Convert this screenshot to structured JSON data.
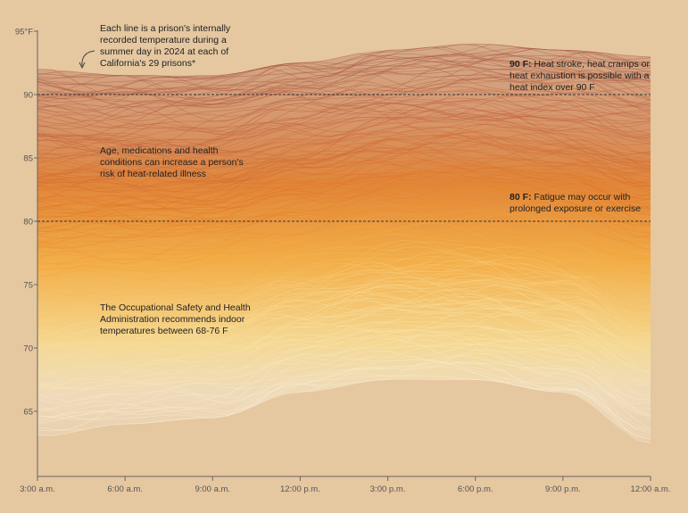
{
  "chart_data": {
    "type": "line",
    "title": "",
    "xlabel": "",
    "ylabel": "",
    "y_unit": "°F",
    "x_ticks": [
      "3:00 a.m.",
      "6:00 a.m.",
      "9:00 a.m.",
      "12:00 p.m.",
      "3:00 p.m.",
      "6:00 p.m.",
      "9:00 p.m.",
      "12:00 a.m."
    ],
    "y_ticks": [
      {
        "value": 95,
        "label": "95°F"
      },
      {
        "value": 90,
        "label": "90"
      },
      {
        "value": 85,
        "label": "85"
      },
      {
        "value": 80,
        "label": "80"
      },
      {
        "value": 75,
        "label": "75"
      },
      {
        "value": 70,
        "label": "70"
      },
      {
        "value": 65,
        "label": "65"
      }
    ],
    "ylim": [
      60,
      95.3
    ],
    "grid": false,
    "reference_lines": [
      {
        "y": 90,
        "style": "dashed"
      },
      {
        "y": 80,
        "style": "dashed"
      }
    ],
    "series_description": "Each line is a prison's internally recorded temperature over a day; hundreds of lines",
    "series_envelope": {
      "x_hours": [
        0,
        3,
        6,
        9,
        12,
        15,
        18,
        21
      ],
      "y_min": [
        63.0,
        64.0,
        64.5,
        66.5,
        67.5,
        67.5,
        66.5,
        62.5
      ],
      "y_max": [
        92.0,
        91.5,
        91.5,
        92.5,
        93.5,
        94.0,
        93.5,
        93.0
      ]
    },
    "colors": {
      "hot": "#a85a48",
      "warm": "#e07b28",
      "mid": "#f5aa3a",
      "cool": "#f8e8b8",
      "background": "#e5c7a0",
      "reference_line": "#333333"
    }
  },
  "annotations": {
    "each_line": [
      "Each line is a prison's internally",
      "recorded temperature during a",
      "summer day in 2024 at each of",
      "California's 29 prisons*"
    ],
    "age": [
      "Age, medications and health",
      "conditions can increase a person's",
      "risk of heat-related illness"
    ],
    "osha": [
      "The Occupational Safety and Health",
      "Administration recommends indoor",
      "temperatures between 68-76 F"
    ],
    "ref90_bold": "90 F:",
    "ref90_lines": [
      " Heat stroke, heat cramps or",
      "heat exhaustion is possible with a",
      "heat index over 90 F"
    ],
    "ref80_bold": "80 F:",
    "ref80_lines": [
      " Fatigue may occur with",
      "prolonged exposure or exercise"
    ]
  }
}
